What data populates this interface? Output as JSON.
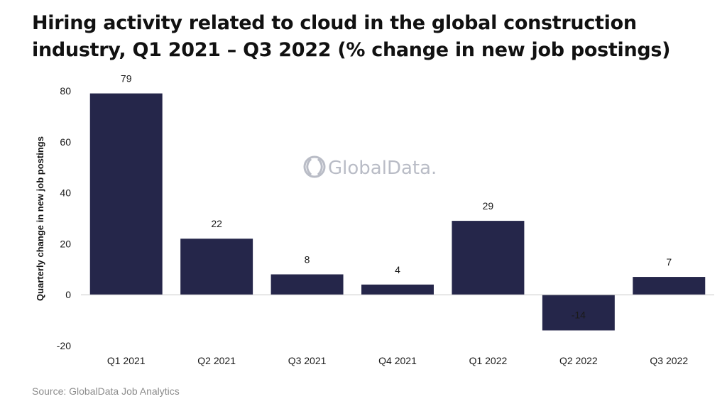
{
  "chart_data": {
    "type": "bar",
    "title": "Hiring activity related to cloud in the global construction industry, Q1 2021 – Q3 2022 (% change in new job postings)",
    "xlabel": "",
    "ylabel": "Quarterly change in new job postings",
    "categories": [
      "Q1 2021",
      "Q2 2021",
      "Q3 2021",
      "Q4 2021",
      "Q1 2022",
      "Q2 2022",
      "Q3 2022"
    ],
    "values": [
      79,
      22,
      8,
      4,
      29,
      -14,
      7
    ],
    "data_labels": [
      "79",
      "22",
      "8",
      "4",
      "29",
      "-14",
      "7"
    ],
    "ylim": [
      -20,
      80
    ],
    "yticks": [
      80,
      60,
      40,
      20,
      0,
      -20
    ],
    "ytick_labels": [
      "80",
      "60",
      "40",
      "20",
      "0",
      "-20"
    ],
    "grid": false,
    "legend": "none",
    "bar_color": "#25264a",
    "zero_line_color": "#c8c8c8"
  },
  "watermark": {
    "text": "GlobalData.",
    "icon": "globaldata-logo-icon",
    "color": "#b9bcc6"
  },
  "source": "Source: GlobalData Job Analytics"
}
